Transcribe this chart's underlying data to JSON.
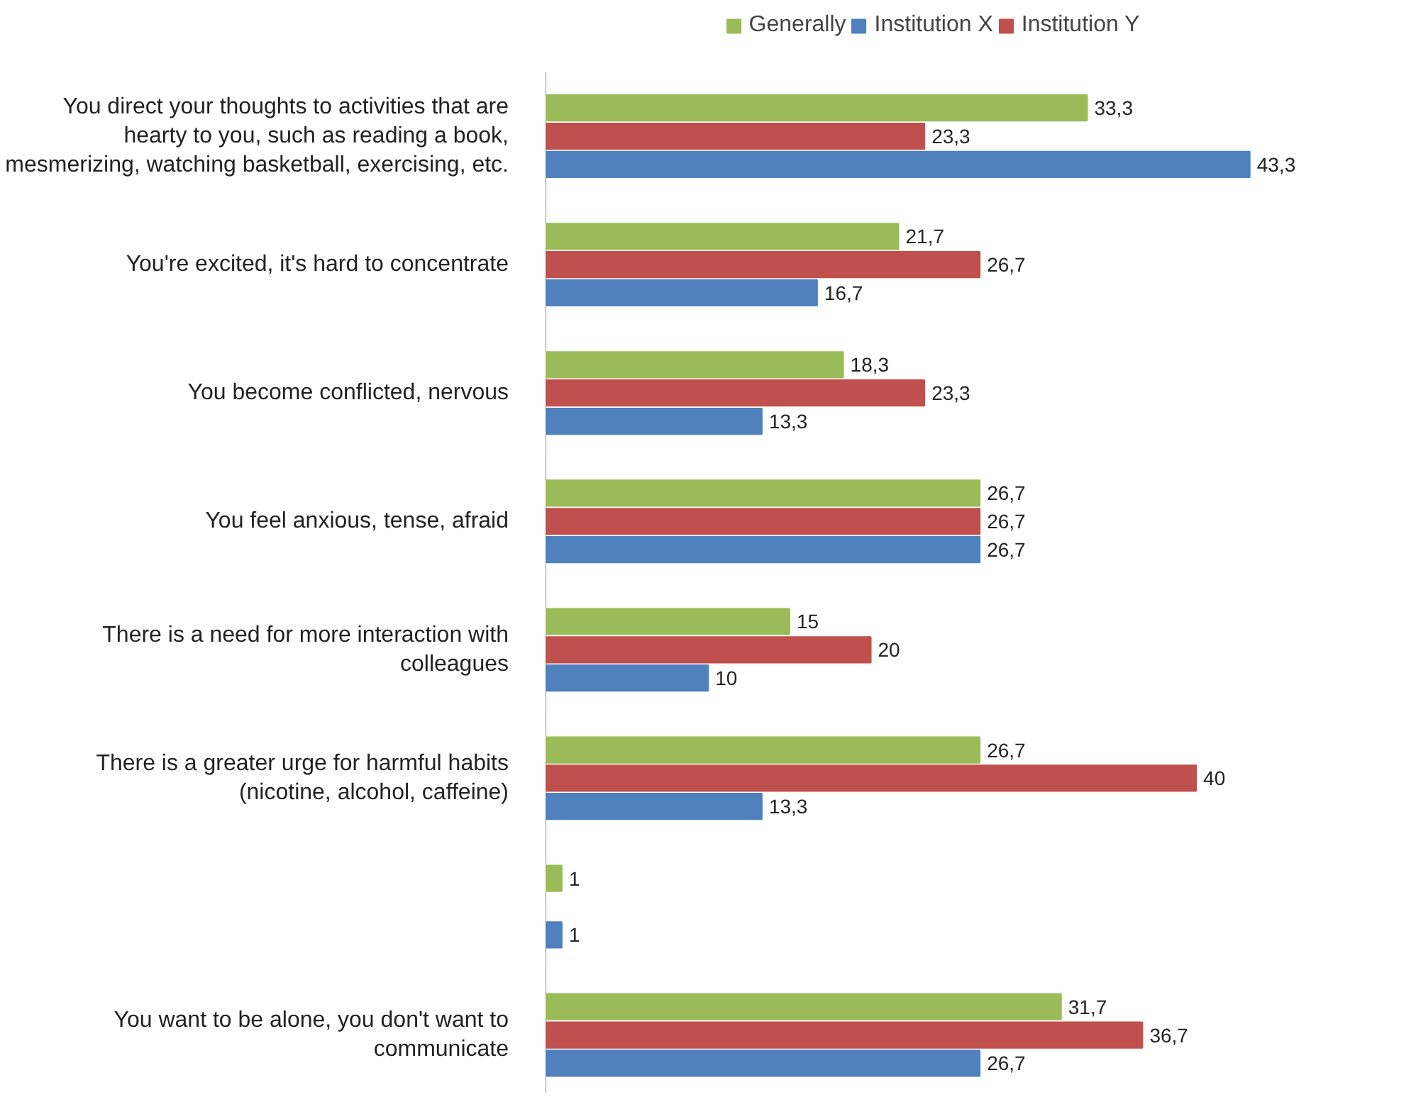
{
  "chart_data": {
    "type": "bar",
    "orientation": "horizontal",
    "legend": "top",
    "categories": [
      "You direct your thoughts to activities that are hearty to you, such as reading a book, mesmerizing, watching basketball, exercising, etc.",
      "You're excited, it's hard to concentrate",
      "You become conflicted, nervous",
      "You feel anxious, tense, afraid",
      "There is a need for more interaction with colleagues",
      "There is a greater urge for harmful habits (nicotine, alcohol, caffeine)",
      null,
      "You want to be alone, you don't want to communicate"
    ],
    "series": [
      {
        "name": "Generally",
        "color": "#9bbb59",
        "values": [
          33.3,
          21.7,
          18.3,
          26.7,
          15,
          26.7,
          1,
          31.7
        ],
        "value_labels": [
          "33,3",
          "21,7",
          "18,3",
          "26,7",
          "15",
          "26,7",
          "1",
          "31,7"
        ]
      },
      {
        "name": "Institution Y",
        "color": "#c0504d",
        "values": [
          23.3,
          26.7,
          23.3,
          26.7,
          20,
          40,
          null,
          36.7
        ],
        "value_labels": [
          "23,3",
          "26,7",
          "23,3",
          "26,7",
          "20",
          "40",
          null,
          "36,7"
        ]
      },
      {
        "name": "Institution X",
        "color": "#4f81bd",
        "values": [
          43.3,
          16.7,
          13.3,
          26.7,
          10,
          13.3,
          1,
          26.7
        ],
        "value_labels": [
          "43,3",
          "16,7",
          "13,3",
          "26,7",
          "10",
          "13,3",
          "1",
          "26,7"
        ]
      }
    ]
  }
}
